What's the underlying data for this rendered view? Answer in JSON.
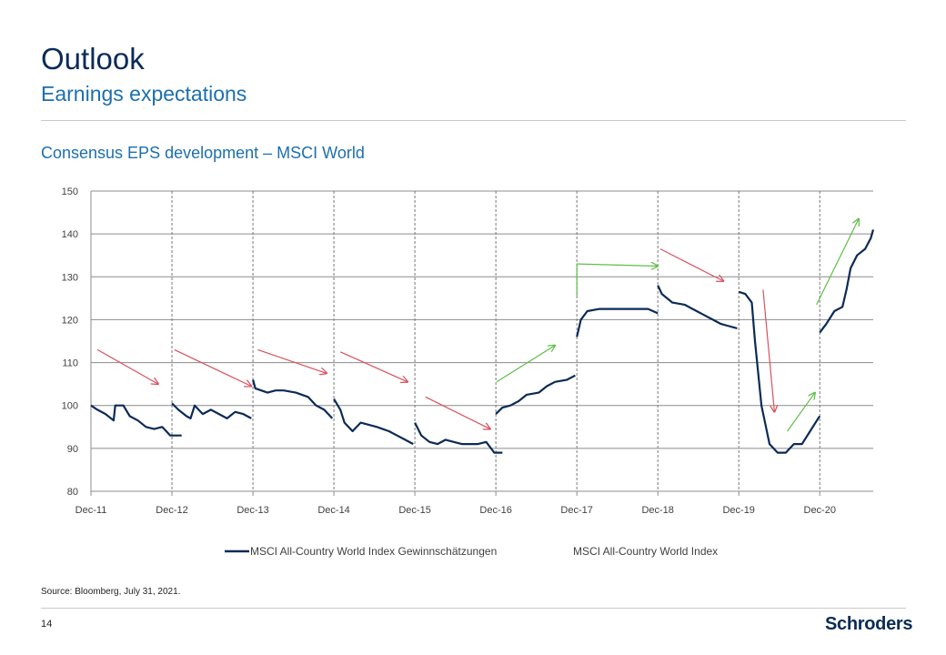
{
  "header": {
    "title": "Outlook",
    "subtitle": "Earnings expectations"
  },
  "chart_data": {
    "type": "line",
    "title": "Consensus  EPS development  – MSCI World",
    "xlabel": "",
    "ylabel": "",
    "ylim": [
      80,
      150
    ],
    "yticks": [
      80,
      90,
      100,
      110,
      120,
      130,
      140,
      150
    ],
    "xlim": [
      2011.92,
      2021.58
    ],
    "xticks": [
      {
        "label": "Dec-11",
        "x": 2011.92
      },
      {
        "label": "Dec-12",
        "x": 2012.92
      },
      {
        "label": "Dec-13",
        "x": 2013.92
      },
      {
        "label": "Dec-14",
        "x": 2014.92
      },
      {
        "label": "Dec-15",
        "x": 2015.92
      },
      {
        "label": "Dec-16",
        "x": 2016.92
      },
      {
        "label": "Dec-17",
        "x": 2017.92
      },
      {
        "label": "Dec-18",
        "x": 2018.92
      },
      {
        "label": "Dec-19",
        "x": 2019.92
      },
      {
        "label": "Dec-20",
        "x": 2020.92
      }
    ],
    "grid": true,
    "legend_position": "bottom",
    "series": [
      {
        "name": "MSCI All-Country World Index Gewinnschätzungen",
        "color": "#0b2b56",
        "segments": [
          [
            [
              2011.92,
              100
            ],
            [
              2012.0,
              99
            ],
            [
              2012.1,
              98
            ],
            [
              2012.2,
              96.5
            ],
            [
              2012.22,
              100
            ],
            [
              2012.32,
              100
            ],
            [
              2012.4,
              97.5
            ],
            [
              2012.5,
              96.5
            ],
            [
              2012.6,
              95
            ],
            [
              2012.7,
              94.5
            ],
            [
              2012.8,
              95
            ],
            [
              2012.9,
              93
            ],
            [
              2013.0,
              93
            ],
            [
              2013.04,
              93
            ]
          ],
          [
            [
              2012.92,
              100.5
            ],
            [
              2013.0,
              99
            ],
            [
              2013.1,
              97.5
            ],
            [
              2013.15,
              97
            ],
            [
              2013.2,
              100
            ],
            [
              2013.3,
              98
            ],
            [
              2013.4,
              99
            ],
            [
              2013.5,
              98
            ],
            [
              2013.6,
              97
            ],
            [
              2013.7,
              98.5
            ],
            [
              2013.8,
              98
            ],
            [
              2013.9,
              97
            ]
          ],
          [
            [
              2013.92,
              106
            ],
            [
              2013.95,
              104
            ],
            [
              2014.1,
              103
            ],
            [
              2014.2,
              103.5
            ],
            [
              2014.3,
              103.5
            ],
            [
              2014.45,
              103
            ],
            [
              2014.6,
              102
            ],
            [
              2014.7,
              100
            ],
            [
              2014.8,
              99
            ],
            [
              2014.9,
              97
            ]
          ],
          [
            [
              2014.92,
              101.5
            ],
            [
              2015.0,
              99
            ],
            [
              2015.05,
              96
            ],
            [
              2015.15,
              94
            ],
            [
              2015.25,
              96
            ],
            [
              2015.35,
              95.5
            ],
            [
              2015.45,
              95
            ],
            [
              2015.6,
              94
            ],
            [
              2015.7,
              93
            ],
            [
              2015.8,
              92
            ],
            [
              2015.9,
              91
            ]
          ],
          [
            [
              2015.92,
              96
            ],
            [
              2016.0,
              93
            ],
            [
              2016.1,
              91.5
            ],
            [
              2016.2,
              91
            ],
            [
              2016.3,
              92
            ],
            [
              2016.4,
              91.5
            ],
            [
              2016.5,
              91
            ],
            [
              2016.6,
              91
            ],
            [
              2016.7,
              91
            ],
            [
              2016.8,
              91.5
            ],
            [
              2016.9,
              89
            ],
            [
              2017.0,
              89
            ]
          ],
          [
            [
              2016.92,
              98
            ],
            [
              2017.0,
              99.5
            ],
            [
              2017.1,
              100
            ],
            [
              2017.2,
              101
            ],
            [
              2017.3,
              102.5
            ],
            [
              2017.45,
              103
            ],
            [
              2017.55,
              104.5
            ],
            [
              2017.65,
              105.5
            ],
            [
              2017.8,
              106
            ],
            [
              2017.9,
              107
            ]
          ],
          [
            [
              2017.92,
              116
            ],
            [
              2017.97,
              120
            ],
            [
              2018.05,
              122
            ],
            [
              2018.2,
              122.5
            ],
            [
              2018.4,
              122.5
            ],
            [
              2018.6,
              122.5
            ],
            [
              2018.8,
              122.5
            ],
            [
              2018.92,
              121.5
            ]
          ],
          [
            [
              2018.92,
              128
            ],
            [
              2018.97,
              126
            ],
            [
              2019.1,
              124
            ],
            [
              2019.25,
              123.5
            ],
            [
              2019.4,
              122
            ],
            [
              2019.5,
              121
            ],
            [
              2019.6,
              120
            ],
            [
              2019.7,
              119
            ],
            [
              2019.8,
              118.5
            ],
            [
              2019.9,
              118
            ]
          ],
          [
            [
              2019.92,
              126.5
            ],
            [
              2020.0,
              126
            ],
            [
              2020.08,
              124
            ],
            [
              2020.12,
              115
            ],
            [
              2020.2,
              100
            ],
            [
              2020.3,
              91
            ],
            [
              2020.4,
              89
            ],
            [
              2020.5,
              89
            ],
            [
              2020.55,
              90
            ],
            [
              2020.6,
              91
            ],
            [
              2020.7,
              91
            ],
            [
              2020.8,
              94
            ],
            [
              2020.9,
              97
            ],
            [
              2020.92,
              97.5
            ]
          ],
          [
            [
              2020.92,
              117
            ],
            [
              2021.0,
              119
            ],
            [
              2021.1,
              122
            ],
            [
              2021.2,
              123
            ],
            [
              2021.25,
              127
            ],
            [
              2021.3,
              132
            ],
            [
              2021.38,
              135
            ],
            [
              2021.48,
              136.5
            ],
            [
              2021.55,
              139
            ],
            [
              2021.58,
              141
            ]
          ]
        ]
      },
      {
        "name": "MSCI All-Country World Index",
        "color": "",
        "segments": []
      }
    ],
    "annotations": {
      "red_arrows": [
        [
          [
            2012.0,
            113
          ],
          [
            2012.75,
            105
          ]
        ],
        [
          [
            2012.95,
            113
          ],
          [
            2013.9,
            104.5
          ]
        ],
        [
          [
            2013.98,
            113
          ],
          [
            2014.83,
            107.5
          ]
        ],
        [
          [
            2015.0,
            112.5
          ],
          [
            2015.83,
            105.5
          ]
        ],
        [
          [
            2016.05,
            102
          ],
          [
            2016.85,
            94.5
          ]
        ],
        [
          [
            2018.95,
            136.5
          ],
          [
            2019.73,
            129
          ]
        ],
        [
          [
            2020.22,
            127
          ],
          [
            2020.36,
            98.5
          ]
        ]
      ],
      "green_arrows": [
        [
          [
            2016.93,
            105.5
          ],
          [
            2017.65,
            114
          ]
        ],
        [
          [
            2017.92,
            125.5
          ],
          [
            2017.92,
            133
          ],
          [
            2018.92,
            132.5
          ]
        ],
        [
          [
            2020.52,
            94
          ],
          [
            2020.86,
            103
          ]
        ],
        [
          [
            2020.88,
            123.5
          ],
          [
            2021.4,
            143.5
          ]
        ]
      ]
    }
  },
  "footer": {
    "source": "Source: Bloomberg, July 31, 2021.",
    "page_number": "14",
    "logo_text": "Schroders"
  }
}
